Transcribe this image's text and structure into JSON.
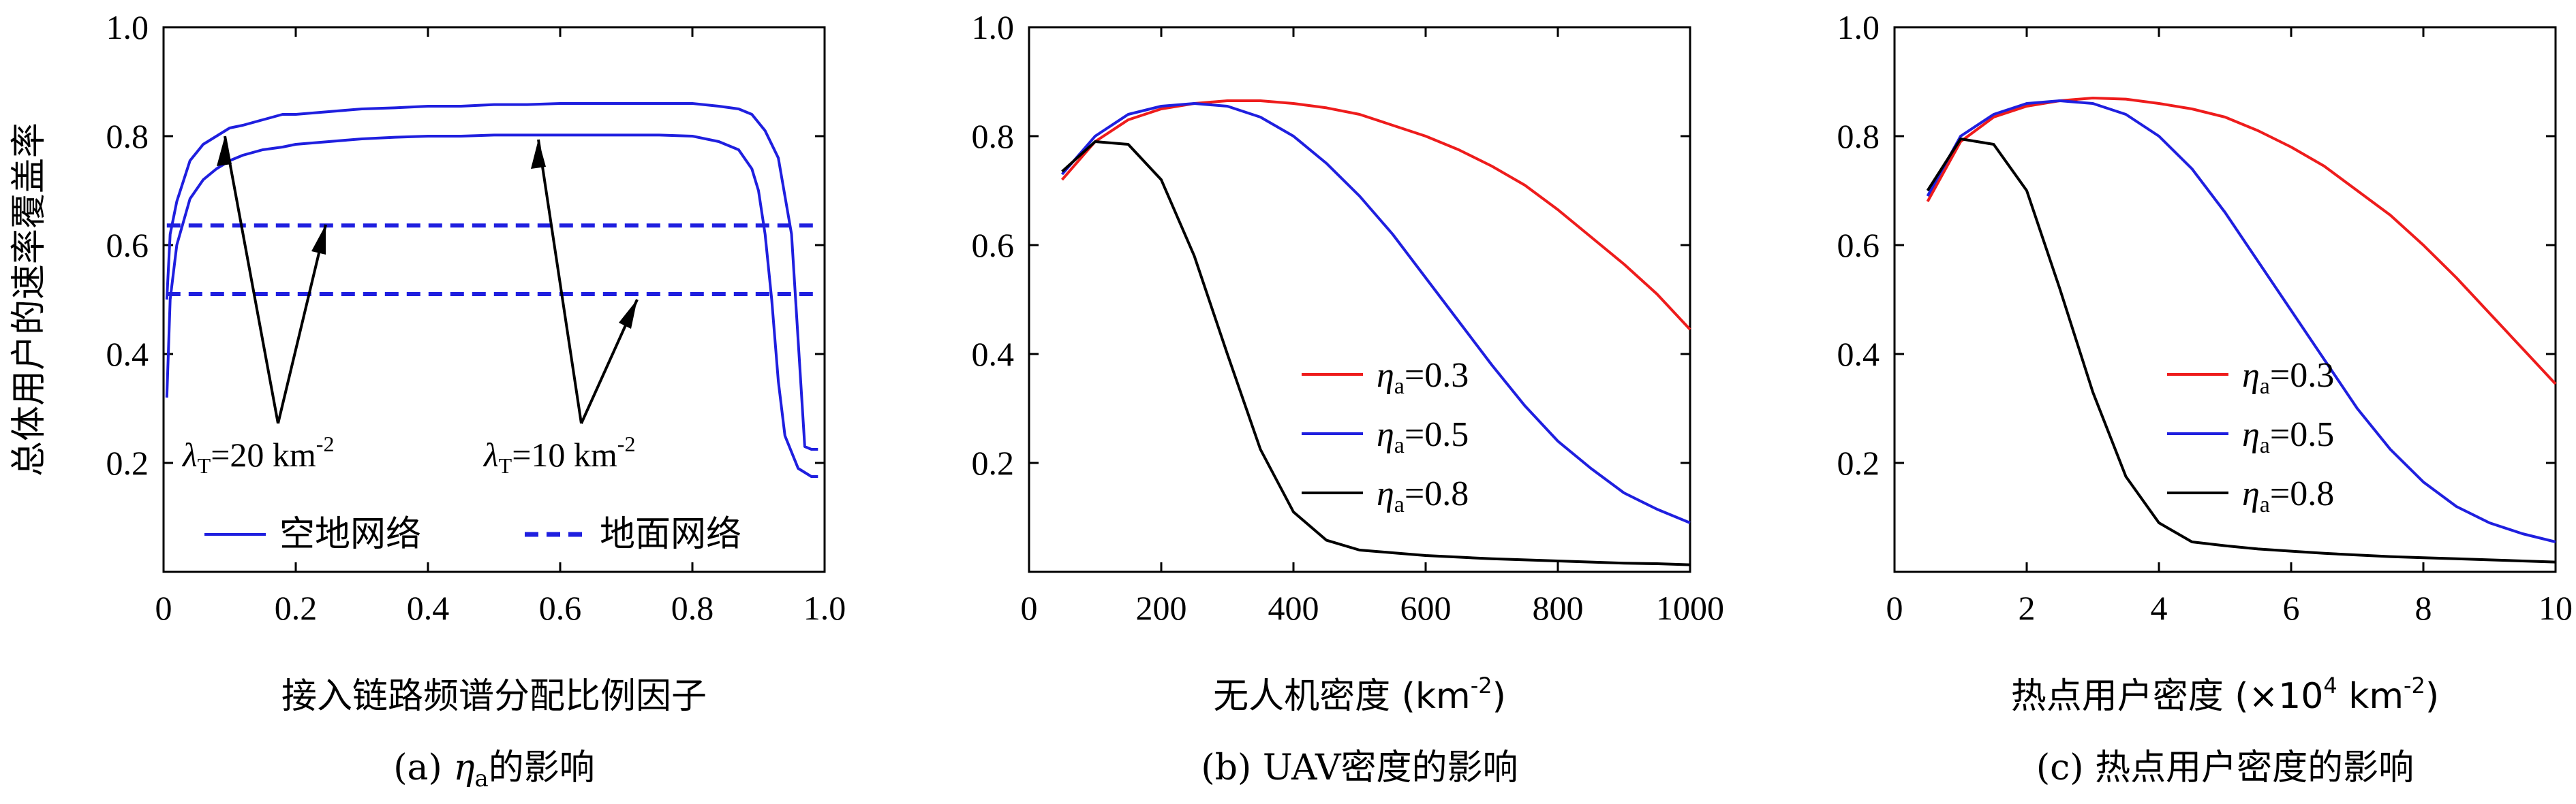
{
  "chart_data": [
    {
      "type": "line",
      "caption": "(a) η_a的影响",
      "caption_prefix": "(a) ",
      "caption_var": "η",
      "caption_sub": "a",
      "caption_suffix": "的影响",
      "xlabel": "接入链路频谱分配比例因子",
      "ylabel": "总体用户的速率覆盖率",
      "xlim": [
        0,
        1.0
      ],
      "ylim": [
        0,
        1.0
      ],
      "xticks": [
        "0",
        "0.2",
        "0.4",
        "0.6",
        "0.8",
        "1.0"
      ],
      "xtick_values": [
        0,
        0.2,
        0.4,
        0.6,
        0.8,
        1.0
      ],
      "yticks": [
        "0.2",
        "0.4",
        "0.6",
        "0.8",
        "1.0"
      ],
      "ytick_values": [
        0.2,
        0.4,
        0.6,
        0.8,
        1.0
      ],
      "legend": [
        {
          "label": "空地网络",
          "style": "solid",
          "color": "#1f1fdf"
        },
        {
          "label": "地面网络",
          "style": "dashed",
          "color": "#1f1fdf"
        }
      ],
      "annotations": [
        {
          "prefix": "λ",
          "sub": "T",
          "text": "=20 km",
          "sup": "-2"
        },
        {
          "prefix": "λ",
          "sub": "T",
          "text": "=10 km",
          "sup": "-2"
        }
      ],
      "series": [
        {
          "name": "空地网络 λT=20",
          "color": "#1f1fdf",
          "dash": false,
          "x": [
            0.005,
            0.01,
            0.02,
            0.04,
            0.06,
            0.08,
            0.1,
            0.12,
            0.15,
            0.18,
            0.2,
            0.25,
            0.3,
            0.35,
            0.4,
            0.45,
            0.5,
            0.55,
            0.6,
            0.65,
            0.7,
            0.75,
            0.8,
            0.84,
            0.87,
            0.89,
            0.91,
            0.93,
            0.95,
            0.97,
            0.98,
            0.99
          ],
          "y": [
            0.5,
            0.62,
            0.68,
            0.755,
            0.785,
            0.8,
            0.815,
            0.82,
            0.83,
            0.84,
            0.84,
            0.845,
            0.85,
            0.852,
            0.855,
            0.855,
            0.858,
            0.858,
            0.86,
            0.86,
            0.86,
            0.86,
            0.86,
            0.855,
            0.85,
            0.84,
            0.81,
            0.76,
            0.62,
            0.23,
            0.225,
            0.225
          ]
        },
        {
          "name": "空地网络 λT=10",
          "color": "#1f1fdf",
          "dash": false,
          "x": [
            0.005,
            0.01,
            0.02,
            0.04,
            0.06,
            0.08,
            0.1,
            0.12,
            0.15,
            0.18,
            0.2,
            0.25,
            0.3,
            0.35,
            0.4,
            0.45,
            0.5,
            0.55,
            0.6,
            0.65,
            0.7,
            0.75,
            0.8,
            0.84,
            0.87,
            0.89,
            0.9,
            0.91,
            0.92,
            0.93,
            0.94,
            0.96,
            0.98,
            0.99
          ],
          "y": [
            0.32,
            0.5,
            0.6,
            0.685,
            0.72,
            0.74,
            0.755,
            0.765,
            0.775,
            0.78,
            0.785,
            0.79,
            0.795,
            0.798,
            0.8,
            0.8,
            0.802,
            0.802,
            0.802,
            0.802,
            0.802,
            0.802,
            0.8,
            0.79,
            0.775,
            0.74,
            0.7,
            0.62,
            0.5,
            0.35,
            0.25,
            0.19,
            0.175,
            0.175
          ]
        },
        {
          "name": "地面网络 λT=20",
          "color": "#1f1fdf",
          "dash": true,
          "x": [
            0.005,
            0.99
          ],
          "y": [
            0.636,
            0.636
          ]
        },
        {
          "name": "地面网络 λT=10",
          "color": "#1f1fdf",
          "dash": true,
          "x": [
            0.005,
            0.99
          ],
          "y": [
            0.51,
            0.51
          ]
        }
      ]
    },
    {
      "type": "line",
      "caption": "(b) UAV密度的影响",
      "xlabel_main": "无人机密度 (km",
      "xlabel_sup": "-2",
      "xlabel_end": ")",
      "xlim": [
        0,
        1000
      ],
      "ylim": [
        0,
        1.0
      ],
      "xticks": [
        "0",
        "200",
        "400",
        "600",
        "800",
        "1000"
      ],
      "xtick_values": [
        0,
        200,
        400,
        600,
        800,
        1000
      ],
      "yticks": [
        "0.2",
        "0.4",
        "0.6",
        "0.8",
        "1.0"
      ],
      "ytick_values": [
        0.2,
        0.4,
        0.6,
        0.8,
        1.0
      ],
      "legend": [
        {
          "var": "η",
          "sub": "a",
          "text": "=0.3",
          "color": "#ee1c1c"
        },
        {
          "var": "η",
          "sub": "a",
          "text": "=0.5",
          "color": "#1f1fdf"
        },
        {
          "var": "η",
          "sub": "a",
          "text": "=0.8",
          "color": "#000000"
        }
      ],
      "series": [
        {
          "name": "ηa=0.3",
          "color": "#ee1c1c",
          "x": [
            50,
            100,
            150,
            200,
            250,
            300,
            350,
            400,
            450,
            500,
            550,
            600,
            650,
            700,
            750,
            800,
            850,
            900,
            950,
            1000
          ],
          "y": [
            0.72,
            0.79,
            0.83,
            0.85,
            0.86,
            0.865,
            0.865,
            0.86,
            0.852,
            0.84,
            0.82,
            0.8,
            0.775,
            0.745,
            0.71,
            0.665,
            0.615,
            0.565,
            0.51,
            0.445
          ]
        },
        {
          "name": "ηa=0.5",
          "color": "#1f1fdf",
          "x": [
            50,
            100,
            150,
            200,
            250,
            300,
            350,
            400,
            450,
            500,
            550,
            600,
            650,
            700,
            750,
            800,
            850,
            900,
            950,
            1000
          ],
          "y": [
            0.73,
            0.8,
            0.84,
            0.855,
            0.86,
            0.855,
            0.835,
            0.8,
            0.75,
            0.69,
            0.62,
            0.54,
            0.46,
            0.38,
            0.305,
            0.24,
            0.19,
            0.145,
            0.115,
            0.09
          ]
        },
        {
          "name": "ηa=0.8",
          "color": "#000000",
          "x": [
            50,
            100,
            150,
            200,
            250,
            300,
            350,
            400,
            450,
            500,
            550,
            600,
            650,
            700,
            750,
            800,
            850,
            900,
            950,
            1000
          ],
          "y": [
            0.735,
            0.79,
            0.785,
            0.72,
            0.58,
            0.4,
            0.225,
            0.11,
            0.058,
            0.04,
            0.035,
            0.03,
            0.027,
            0.024,
            0.022,
            0.02,
            0.018,
            0.016,
            0.015,
            0.013
          ]
        }
      ]
    },
    {
      "type": "line",
      "caption": "(c) 热点用户密度的影响",
      "xlabel_main": "热点用户密度 (×10",
      "xlabel_sup1": "4",
      "xlabel_mid": " km",
      "xlabel_sup": "-2",
      "xlabel_end": ")",
      "xlim": [
        0,
        10
      ],
      "ylim": [
        0,
        1.0
      ],
      "xticks": [
        "0",
        "2",
        "4",
        "6",
        "8",
        "10"
      ],
      "xtick_values": [
        0,
        2,
        4,
        6,
        8,
        10
      ],
      "yticks": [
        "0.2",
        "0.4",
        "0.6",
        "0.8",
        "1.0"
      ],
      "ytick_values": [
        0.2,
        0.4,
        0.6,
        0.8,
        1.0
      ],
      "legend": [
        {
          "var": "η",
          "sub": "a",
          "text": "=0.3",
          "color": "#ee1c1c"
        },
        {
          "var": "η",
          "sub": "a",
          "text": "=0.5",
          "color": "#1f1fdf"
        },
        {
          "var": "η",
          "sub": "a",
          "text": "=0.8",
          "color": "#000000"
        }
      ],
      "series": [
        {
          "name": "ηa=0.3",
          "color": "#ee1c1c",
          "x": [
            0.5,
            1,
            1.5,
            2,
            2.5,
            3,
            3.5,
            4,
            4.5,
            5,
            5.5,
            6,
            6.5,
            7,
            7.5,
            8,
            8.5,
            9,
            9.5,
            10
          ],
          "y": [
            0.68,
            0.79,
            0.835,
            0.855,
            0.865,
            0.87,
            0.868,
            0.86,
            0.85,
            0.835,
            0.81,
            0.78,
            0.745,
            0.7,
            0.655,
            0.6,
            0.54,
            0.475,
            0.41,
            0.345
          ]
        },
        {
          "name": "ηa=0.5",
          "color": "#1f1fdf",
          "x": [
            0.5,
            1,
            1.5,
            2,
            2.5,
            3,
            3.5,
            4,
            4.5,
            5,
            5.5,
            6,
            6.5,
            7,
            7.5,
            8,
            8.5,
            9,
            9.5,
            10
          ],
          "y": [
            0.69,
            0.8,
            0.84,
            0.86,
            0.865,
            0.86,
            0.84,
            0.8,
            0.74,
            0.66,
            0.57,
            0.48,
            0.39,
            0.3,
            0.225,
            0.165,
            0.12,
            0.09,
            0.07,
            0.055
          ]
        },
        {
          "name": "ηa=0.8",
          "color": "#000000",
          "x": [
            0.5,
            1,
            1.5,
            2,
            2.5,
            3,
            3.5,
            4,
            4.5,
            5,
            5.5,
            6,
            6.5,
            7,
            7.5,
            8,
            8.5,
            9,
            9.5,
            10
          ],
          "y": [
            0.7,
            0.795,
            0.785,
            0.7,
            0.52,
            0.33,
            0.175,
            0.09,
            0.055,
            0.048,
            0.042,
            0.038,
            0.034,
            0.031,
            0.028,
            0.026,
            0.024,
            0.022,
            0.02,
            0.018
          ]
        }
      ]
    }
  ]
}
